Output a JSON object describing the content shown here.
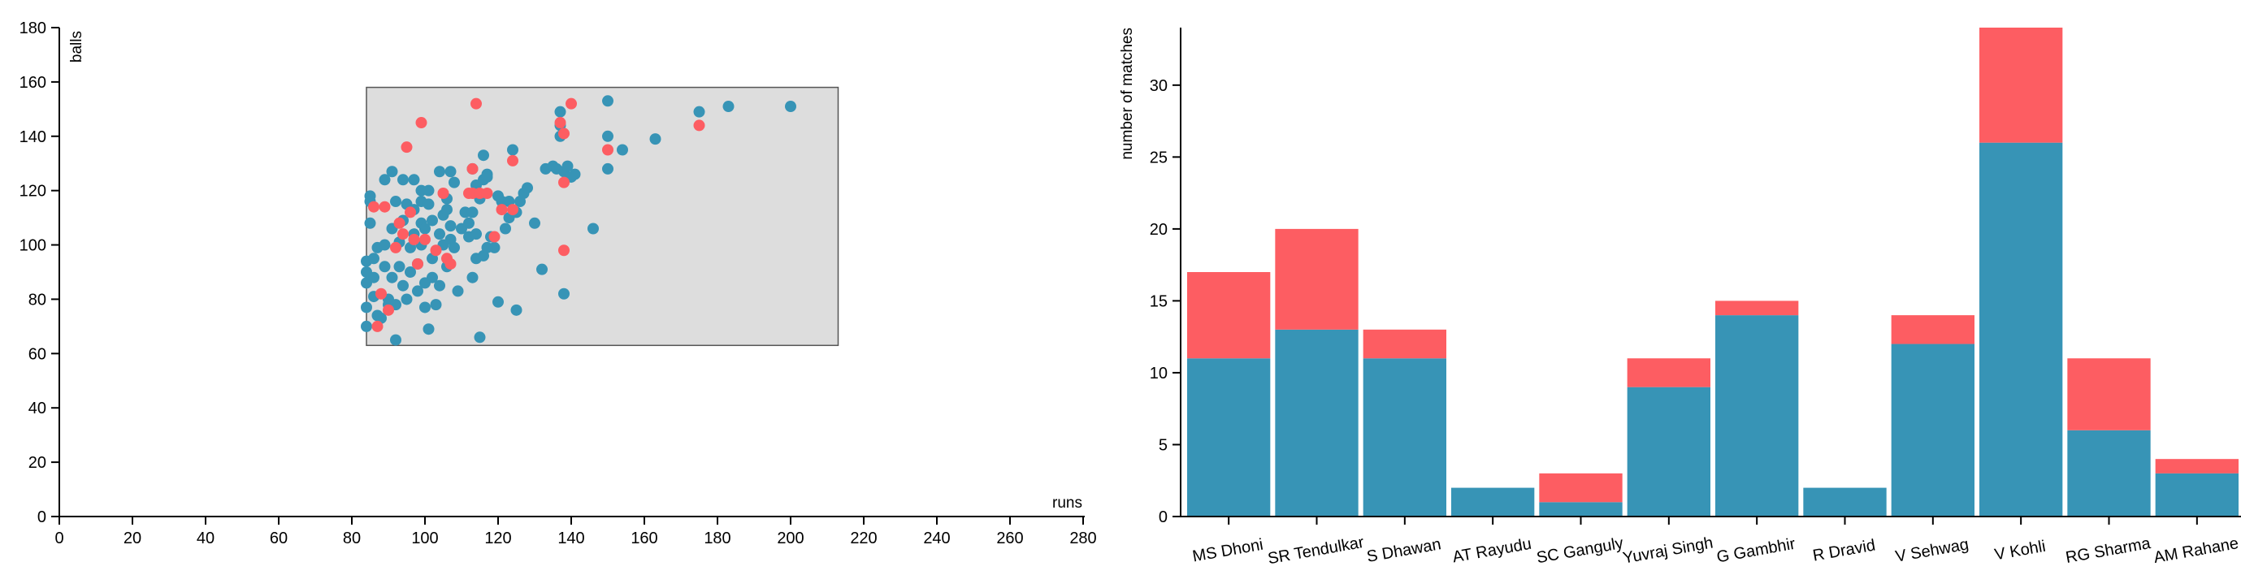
{
  "colors": {
    "primary": "#3794b6",
    "secondary": "#fd5d62",
    "brush_fill": "#dddddd",
    "axis": "#000000"
  },
  "chart_data": [
    {
      "type": "scatter",
      "xlabel": "runs",
      "ylabel": "balls",
      "xlim": [
        0,
        280
      ],
      "ylim": [
        0,
        180
      ],
      "x_ticks": [
        "0",
        "20",
        "40",
        "60",
        "80",
        "100",
        "120",
        "140",
        "160",
        "180",
        "200",
        "220",
        "240",
        "260",
        "280"
      ],
      "y_ticks": [
        "0",
        "20",
        "40",
        "60",
        "80",
        "100",
        "120",
        "140",
        "160",
        "180"
      ],
      "brush": {
        "x": [
          84,
          213
        ],
        "y": [
          63,
          158
        ]
      },
      "series": [
        {
          "color": "#3794b6",
          "points": [
            [
              84,
              70
            ],
            [
              84,
              77
            ],
            [
              84,
              86
            ],
            [
              84,
              90
            ],
            [
              84,
              94
            ],
            [
              85,
              118
            ],
            [
              85,
              116
            ],
            [
              85,
              108
            ],
            [
              86,
              81
            ],
            [
              86,
              88
            ],
            [
              86,
              95
            ],
            [
              87,
              99
            ],
            [
              87,
              74
            ],
            [
              88,
              73
            ],
            [
              89,
              124
            ],
            [
              89,
              100
            ],
            [
              89,
              92
            ],
            [
              90,
              80
            ],
            [
              90,
              78
            ],
            [
              91,
              127
            ],
            [
              91,
              106
            ],
            [
              91,
              88
            ],
            [
              92,
              116
            ],
            [
              92,
              65
            ],
            [
              92,
              78
            ],
            [
              93,
              101
            ],
            [
              93,
              92
            ],
            [
              94,
              124
            ],
            [
              94,
              85
            ],
            [
              94,
              109
            ],
            [
              95,
              80
            ],
            [
              95,
              115
            ],
            [
              96,
              90
            ],
            [
              96,
              99
            ],
            [
              97,
              113
            ],
            [
              97,
              104
            ],
            [
              97,
              124
            ],
            [
              98,
              83
            ],
            [
              98,
              93
            ],
            [
              99,
              120
            ],
            [
              99,
              116
            ],
            [
              99,
              108
            ],
            [
              99,
              100
            ],
            [
              100,
              106
            ],
            [
              100,
              77
            ],
            [
              100,
              86
            ],
            [
              101,
              69
            ],
            [
              101,
              120
            ],
            [
              101,
              115
            ],
            [
              102,
              109
            ],
            [
              102,
              95
            ],
            [
              102,
              88
            ],
            [
              103,
              78
            ],
            [
              104,
              127
            ],
            [
              104,
              104
            ],
            [
              104,
              85
            ],
            [
              105,
              100
            ],
            [
              105,
              111
            ],
            [
              106,
              117
            ],
            [
              106,
              113
            ],
            [
              106,
              92
            ],
            [
              107,
              107
            ],
            [
              107,
              102
            ],
            [
              107,
              127
            ],
            [
              108,
              99
            ],
            [
              108,
              123
            ],
            [
              109,
              83
            ],
            [
              110,
              106
            ],
            [
              111,
              112
            ],
            [
              112,
              108
            ],
            [
              112,
              103
            ],
            [
              113,
              112
            ],
            [
              113,
              128
            ],
            [
              113,
              88
            ],
            [
              114,
              122
            ],
            [
              114,
              95
            ],
            [
              114,
              104
            ],
            [
              115,
              66
            ],
            [
              115,
              117
            ],
            [
              116,
              133
            ],
            [
              116,
              96
            ],
            [
              116,
              124
            ],
            [
              117,
              126
            ],
            [
              117,
              125
            ],
            [
              117,
              99
            ],
            [
              118,
              103
            ],
            [
              119,
              99
            ],
            [
              120,
              79
            ],
            [
              120,
              118
            ],
            [
              121,
              116
            ],
            [
              122,
              106
            ],
            [
              123,
              116
            ],
            [
              123,
              110
            ],
            [
              124,
              135
            ],
            [
              125,
              76
            ],
            [
              125,
              112
            ],
            [
              126,
              116
            ],
            [
              127,
              119
            ],
            [
              128,
              121
            ],
            [
              130,
              108
            ],
            [
              132,
              91
            ],
            [
              133,
              128
            ],
            [
              135,
              129
            ],
            [
              136,
              128
            ],
            [
              137,
              149
            ],
            [
              137,
              144
            ],
            [
              137,
              140
            ],
            [
              138,
              82
            ],
            [
              138,
              127
            ],
            [
              139,
              129
            ],
            [
              140,
              125
            ],
            [
              141,
              126
            ],
            [
              146,
              106
            ],
            [
              150,
              153
            ],
            [
              150,
              140
            ],
            [
              150,
              128
            ],
            [
              154,
              135
            ],
            [
              163,
              139
            ],
            [
              175,
              149
            ],
            [
              183,
              151
            ],
            [
              200,
              151
            ]
          ]
        },
        {
          "color": "#fd5d62",
          "points": [
            [
              86,
              114
            ],
            [
              87,
              70
            ],
            [
              88,
              82
            ],
            [
              89,
              114
            ],
            [
              90,
              76
            ],
            [
              92,
              99
            ],
            [
              93,
              108
            ],
            [
              94,
              104
            ],
            [
              95,
              136
            ],
            [
              96,
              112
            ],
            [
              97,
              102
            ],
            [
              98,
              93
            ],
            [
              99,
              145
            ],
            [
              100,
              102
            ],
            [
              103,
              98
            ],
            [
              105,
              119
            ],
            [
              106,
              95
            ],
            [
              107,
              93
            ],
            [
              112,
              119
            ],
            [
              113,
              119
            ],
            [
              113,
              128
            ],
            [
              114,
              152
            ],
            [
              115,
              119
            ],
            [
              117,
              119
            ],
            [
              119,
              103
            ],
            [
              121,
              113
            ],
            [
              124,
              113
            ],
            [
              124,
              131
            ],
            [
              137,
              145
            ],
            [
              138,
              98
            ],
            [
              138,
              141
            ],
            [
              138,
              123
            ],
            [
              140,
              152
            ],
            [
              150,
              135
            ],
            [
              175,
              144
            ]
          ]
        }
      ]
    },
    {
      "type": "bar",
      "stacked": true,
      "ylabel": "number of matches",
      "ylim": [
        0,
        34
      ],
      "y_ticks": [
        "0",
        "5",
        "10",
        "15",
        "20",
        "25",
        "30"
      ],
      "categories": [
        "MS Dhoni",
        "SR Tendulkar",
        "S Dhawan",
        "AT Rayudu",
        "SC Ganguly",
        "Yuvraj Singh",
        "G Gambhir",
        "R Dravid",
        "V Sehwag",
        "V Kohli",
        "RG Sharma",
        "AM Rahane"
      ],
      "series": [
        {
          "color": "#3794b6",
          "values": [
            11,
            13,
            11,
            2,
            1,
            9,
            14,
            2,
            12,
            26,
            6,
            3
          ]
        },
        {
          "color": "#fd5d62",
          "values": [
            6,
            7,
            2,
            0,
            2,
            2,
            1,
            0,
            2,
            8,
            5,
            1
          ]
        }
      ]
    }
  ]
}
